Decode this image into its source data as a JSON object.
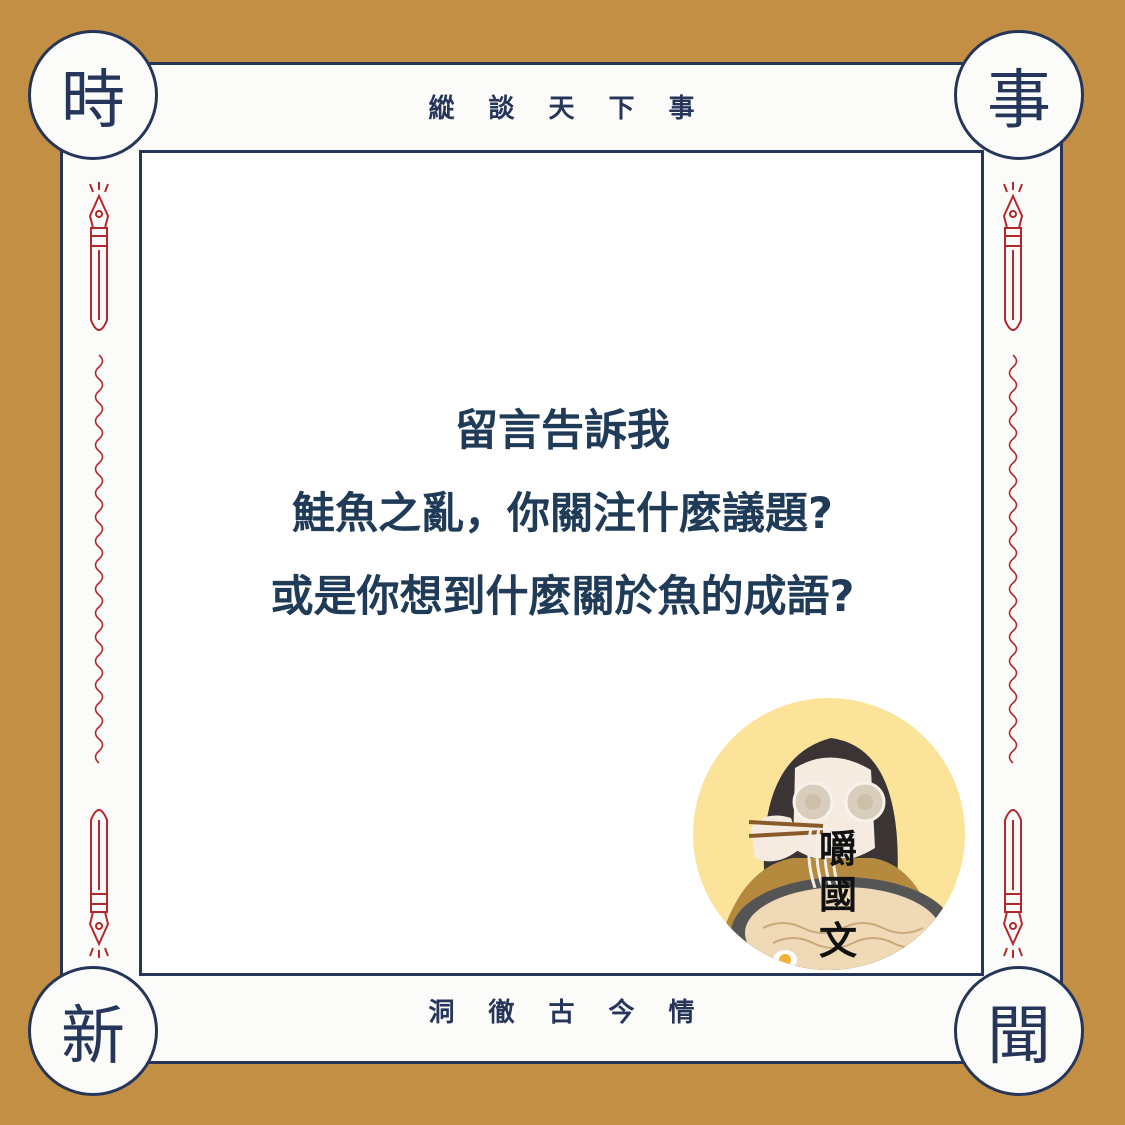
{
  "corners": {
    "top_left": "時",
    "top_right": "事",
    "bottom_left": "新",
    "bottom_right": "聞"
  },
  "bands": {
    "top": "縱談天下事",
    "bottom": "洞徹古今情"
  },
  "main": {
    "lines": [
      "留言告訴我",
      "鮭魚之亂，你關注什麼議題?",
      "或是你想到什麼關於魚的成語?"
    ]
  },
  "logo": {
    "chars": [
      "嚼",
      "國",
      "文"
    ]
  },
  "colors": {
    "background": "#c28f44",
    "navy": "#26365a",
    "text": "#1f3b57",
    "accent_red": "#b3272d",
    "logo_yellow": "#fbe49a"
  }
}
